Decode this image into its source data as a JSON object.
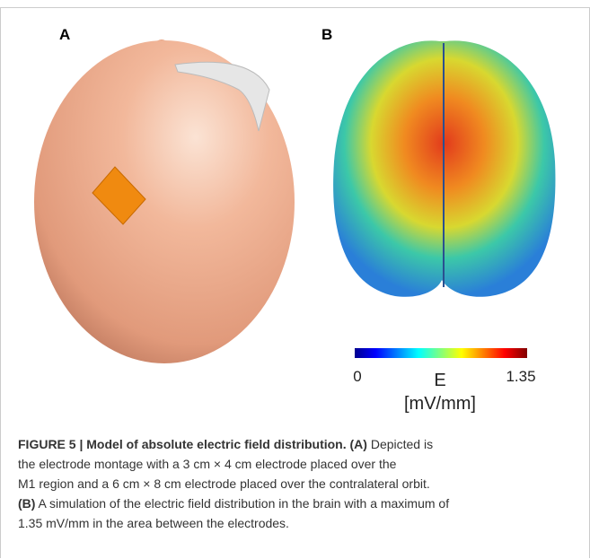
{
  "panels": [
    {
      "label": "A"
    },
    {
      "label": "B"
    }
  ],
  "colorbar": {
    "min": 0,
    "max": 1.35,
    "label": "E",
    "unit": "[mV/mm]"
  },
  "caption": {
    "lines": [
      [
        {
          "text": "FIGURE 5 | Model of absolute electric field distribution. (A)",
          "bold": true
        },
        {
          "text": " Depicted is",
          "bold": false
        }
      ],
      [
        {
          "text": "the electrode montage with a 3 cm × 4 cm electrode placed over the",
          "bold": false
        }
      ],
      [
        {
          "text": "M1 region and a 6 cm × 8 cm electrode placed over the contralateral orbit.",
          "bold": false
        }
      ],
      [
        {
          "text": "(B)",
          "bold": true
        },
        {
          "text": " A simulation of the electric field distribution in the brain with a maximum of",
          "bold": false
        }
      ],
      [
        {
          "text": "1.35 mV/mm in the area between the electrodes.",
          "bold": false
        }
      ]
    ]
  }
}
